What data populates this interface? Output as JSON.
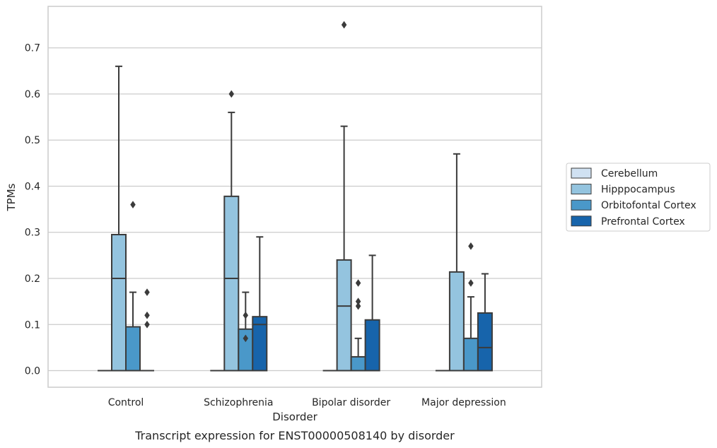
{
  "caption": "Transcript expression for ENST00000508140 by disorder",
  "chart_data": {
    "type": "box",
    "xlabel": "Disorder",
    "ylabel": "TPMs",
    "ylim": [
      -0.036,
      0.79
    ],
    "yticks": [
      0.0,
      0.1,
      0.2,
      0.3,
      0.4,
      0.5,
      0.6,
      0.7
    ],
    "ytick_labels": [
      "0.0",
      "0.1",
      "0.2",
      "0.3",
      "0.4",
      "0.5",
      "0.6",
      "0.7"
    ],
    "grid": "horizontal",
    "legend_position": "right",
    "categories": [
      "Control",
      "Schizophrenia",
      "Bipolar disorder",
      "Major depression"
    ],
    "series": [
      {
        "name": "Cerebellum",
        "color": "#d0e1f2",
        "boxes": [
          {
            "whisker_low": 0,
            "q1": 0,
            "median": 0,
            "q3": 0,
            "whisker_high": 0,
            "outliers": []
          },
          {
            "whisker_low": 0,
            "q1": 0,
            "median": 0,
            "q3": 0,
            "whisker_high": 0,
            "outliers": []
          },
          {
            "whisker_low": 0,
            "q1": 0,
            "median": 0,
            "q3": 0,
            "whisker_high": 0,
            "outliers": []
          },
          {
            "whisker_low": 0,
            "q1": 0,
            "median": 0,
            "q3": 0,
            "whisker_high": 0,
            "outliers": []
          }
        ]
      },
      {
        "name": "Hipppocampus",
        "color": "#94c4df",
        "boxes": [
          {
            "whisker_low": 0,
            "q1": 0,
            "median": 0.2,
            "q3": 0.295,
            "whisker_high": 0.66,
            "outliers": []
          },
          {
            "whisker_low": 0,
            "q1": 0,
            "median": 0.2,
            "q3": 0.378,
            "whisker_high": 0.56,
            "outliers": [
              0.6
            ]
          },
          {
            "whisker_low": 0,
            "q1": 0,
            "median": 0.14,
            "q3": 0.24,
            "whisker_high": 0.53,
            "outliers": [
              0.75
            ]
          },
          {
            "whisker_low": 0,
            "q1": 0,
            "median": 0,
            "q3": 0.214,
            "whisker_high": 0.47,
            "outliers": []
          }
        ]
      },
      {
        "name": "Orbitofontal Cortex",
        "color": "#4a98c9",
        "boxes": [
          {
            "whisker_low": 0,
            "q1": 0,
            "median": 0,
            "q3": 0.095,
            "whisker_high": 0.17,
            "outliers": [
              0.36
            ]
          },
          {
            "whisker_low": 0,
            "q1": 0,
            "median": 0,
            "q3": 0.09,
            "whisker_high": 0.17,
            "outliers": [
              0.12,
              0.07
            ]
          },
          {
            "whisker_low": 0,
            "q1": 0,
            "median": 0,
            "q3": 0.03,
            "whisker_high": 0.07,
            "outliers": [
              0.19,
              0.15,
              0.14
            ]
          },
          {
            "whisker_low": 0,
            "q1": 0,
            "median": 0,
            "q3": 0.07,
            "whisker_high": 0.16,
            "outliers": [
              0.27,
              0.19
            ]
          }
        ]
      },
      {
        "name": "Prefrontal Cortex",
        "color": "#1764ab",
        "boxes": [
          {
            "whisker_low": 0,
            "q1": 0,
            "median": 0,
            "q3": 0,
            "whisker_high": 0,
            "outliers": [
              0.17,
              0.12,
              0.1
            ]
          },
          {
            "whisker_low": 0,
            "q1": 0,
            "median": 0.1,
            "q3": 0.117,
            "whisker_high": 0.29,
            "outliers": []
          },
          {
            "whisker_low": 0,
            "q1": 0,
            "median": 0,
            "q3": 0.11,
            "whisker_high": 0.25,
            "outliers": []
          },
          {
            "whisker_low": 0,
            "q1": 0,
            "median": 0.05,
            "q3": 0.125,
            "whisker_high": 0.21,
            "outliers": []
          }
        ]
      }
    ]
  }
}
